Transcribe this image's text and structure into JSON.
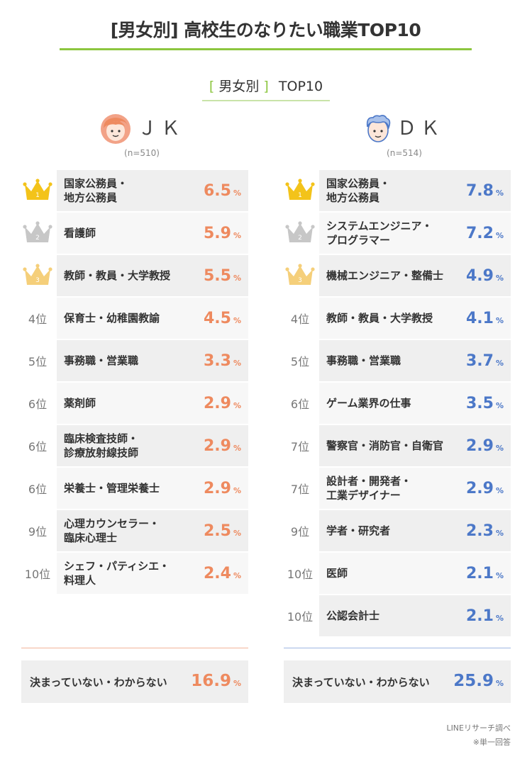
{
  "title": "[男女別] 高校生のなりたい職業TOP10",
  "subtitle": {
    "bracket_open": "[",
    "text": "男女別",
    "bracket_close": "]",
    "suffix": "TOP10"
  },
  "colors": {
    "accent": "#8cc63f",
    "jk": "#ee8a5f",
    "dk": "#4c78c8",
    "gold": "#f3c31a",
    "silver": "#c7c7c7",
    "bronze": "#f5cf7a"
  },
  "groups": {
    "jk": {
      "label": "ＪＫ",
      "n": "(n=510)",
      "avatar_icon": "girl-face-icon",
      "undecided": {
        "label": "決まっていない・わからない",
        "value": "16.9",
        "unit": "%"
      },
      "rows": [
        {
          "rank": "1",
          "rank_icon": "gold-crown-icon",
          "job": "国家公務員・\n地方公務員",
          "value": "6.5",
          "unit": "%"
        },
        {
          "rank": "2",
          "rank_icon": "silver-crown-icon",
          "job": "看護師",
          "value": "5.9",
          "unit": "%"
        },
        {
          "rank": "3",
          "rank_icon": "bronze-crown-icon",
          "job": "教師・教員・大学教授",
          "value": "5.5",
          "unit": "%"
        },
        {
          "rank": "4位",
          "job": "保育士・幼稚園教諭",
          "value": "4.5",
          "unit": "%"
        },
        {
          "rank": "5位",
          "job": "事務職・営業職",
          "value": "3.3",
          "unit": "%"
        },
        {
          "rank": "6位",
          "job": "薬剤師",
          "value": "2.9",
          "unit": "%"
        },
        {
          "rank": "6位",
          "job": "臨床検査技師・\n診療放射線技師",
          "value": "2.9",
          "unit": "%"
        },
        {
          "rank": "6位",
          "job": "栄養士・管理栄養士",
          "value": "2.9",
          "unit": "%"
        },
        {
          "rank": "9位",
          "job": "心理カウンセラー・\n臨床心理士",
          "value": "2.5",
          "unit": "%"
        },
        {
          "rank": "10位",
          "job": "シェフ・パティシエ・\n料理人",
          "value": "2.4",
          "unit": "%"
        }
      ]
    },
    "dk": {
      "label": "ＤＫ",
      "n": "(n=514)",
      "avatar_icon": "boy-face-icon",
      "undecided": {
        "label": "決まっていない・わからない",
        "value": "25.9",
        "unit": "%"
      },
      "rows": [
        {
          "rank": "1",
          "rank_icon": "gold-crown-icon",
          "job": "国家公務員・\n地方公務員",
          "value": "7.8",
          "unit": "%"
        },
        {
          "rank": "2",
          "rank_icon": "silver-crown-icon",
          "job": "システムエンジニア・\nプログラマー",
          "value": "7.2",
          "unit": "%"
        },
        {
          "rank": "3",
          "rank_icon": "bronze-crown-icon",
          "job": "機械エンジニア・整備士",
          "value": "4.9",
          "unit": "%"
        },
        {
          "rank": "4位",
          "job": "教師・教員・大学教授",
          "value": "4.1",
          "unit": "%"
        },
        {
          "rank": "5位",
          "job": "事務職・営業職",
          "value": "3.7",
          "unit": "%"
        },
        {
          "rank": "6位",
          "job": "ゲーム業界の仕事",
          "value": "3.5",
          "unit": "%"
        },
        {
          "rank": "7位",
          "job": "警察官・消防官・自衛官",
          "value": "2.9",
          "unit": "%"
        },
        {
          "rank": "7位",
          "job": "設計者・開発者・\n工業デザイナー",
          "value": "2.9",
          "unit": "%"
        },
        {
          "rank": "9位",
          "job": "学者・研究者",
          "value": "2.3",
          "unit": "%"
        },
        {
          "rank": "10位",
          "job": "医師",
          "value": "2.1",
          "unit": "%"
        },
        {
          "rank": "10位",
          "job": "公認会計士",
          "value": "2.1",
          "unit": "%"
        }
      ]
    }
  },
  "source": {
    "line1": "LINEリサーチ調べ",
    "line2": "※単一回答"
  },
  "chart_data": {
    "type": "table",
    "title": "[男女別] 高校生のなりたい職業TOP10",
    "series": [
      {
        "name": "ＪＫ",
        "categories": [
          "国家公務員・地方公務員",
          "看護師",
          "教師・教員・大学教授",
          "保育士・幼稚園教諭",
          "事務職・営業職",
          "薬剤師",
          "臨床検査技師・診療放射線技師",
          "栄養士・管理栄養士",
          "心理カウンセラー・臨床心理士",
          "シェフ・パティシエ・料理人",
          "決まっていない・わからない"
        ],
        "values": [
          6.5,
          5.9,
          5.5,
          4.5,
          3.3,
          2.9,
          2.9,
          2.9,
          2.5,
          2.4,
          16.9
        ]
      },
      {
        "name": "ＤＫ",
        "categories": [
          "国家公務員・地方公務員",
          "システムエンジニア・プログラマー",
          "機械エンジニア・整備士",
          "教師・教員・大学教授",
          "事務職・営業職",
          "ゲーム業界の仕事",
          "警察官・消防官・自衛官",
          "設計者・開発者・工業デザイナー",
          "学者・研究者",
          "医師",
          "公認会計士",
          "決まっていない・わからない"
        ],
        "values": [
          7.8,
          7.2,
          4.9,
          4.1,
          3.7,
          3.5,
          2.9,
          2.9,
          2.3,
          2.1,
          2.1,
          25.9
        ]
      }
    ]
  }
}
